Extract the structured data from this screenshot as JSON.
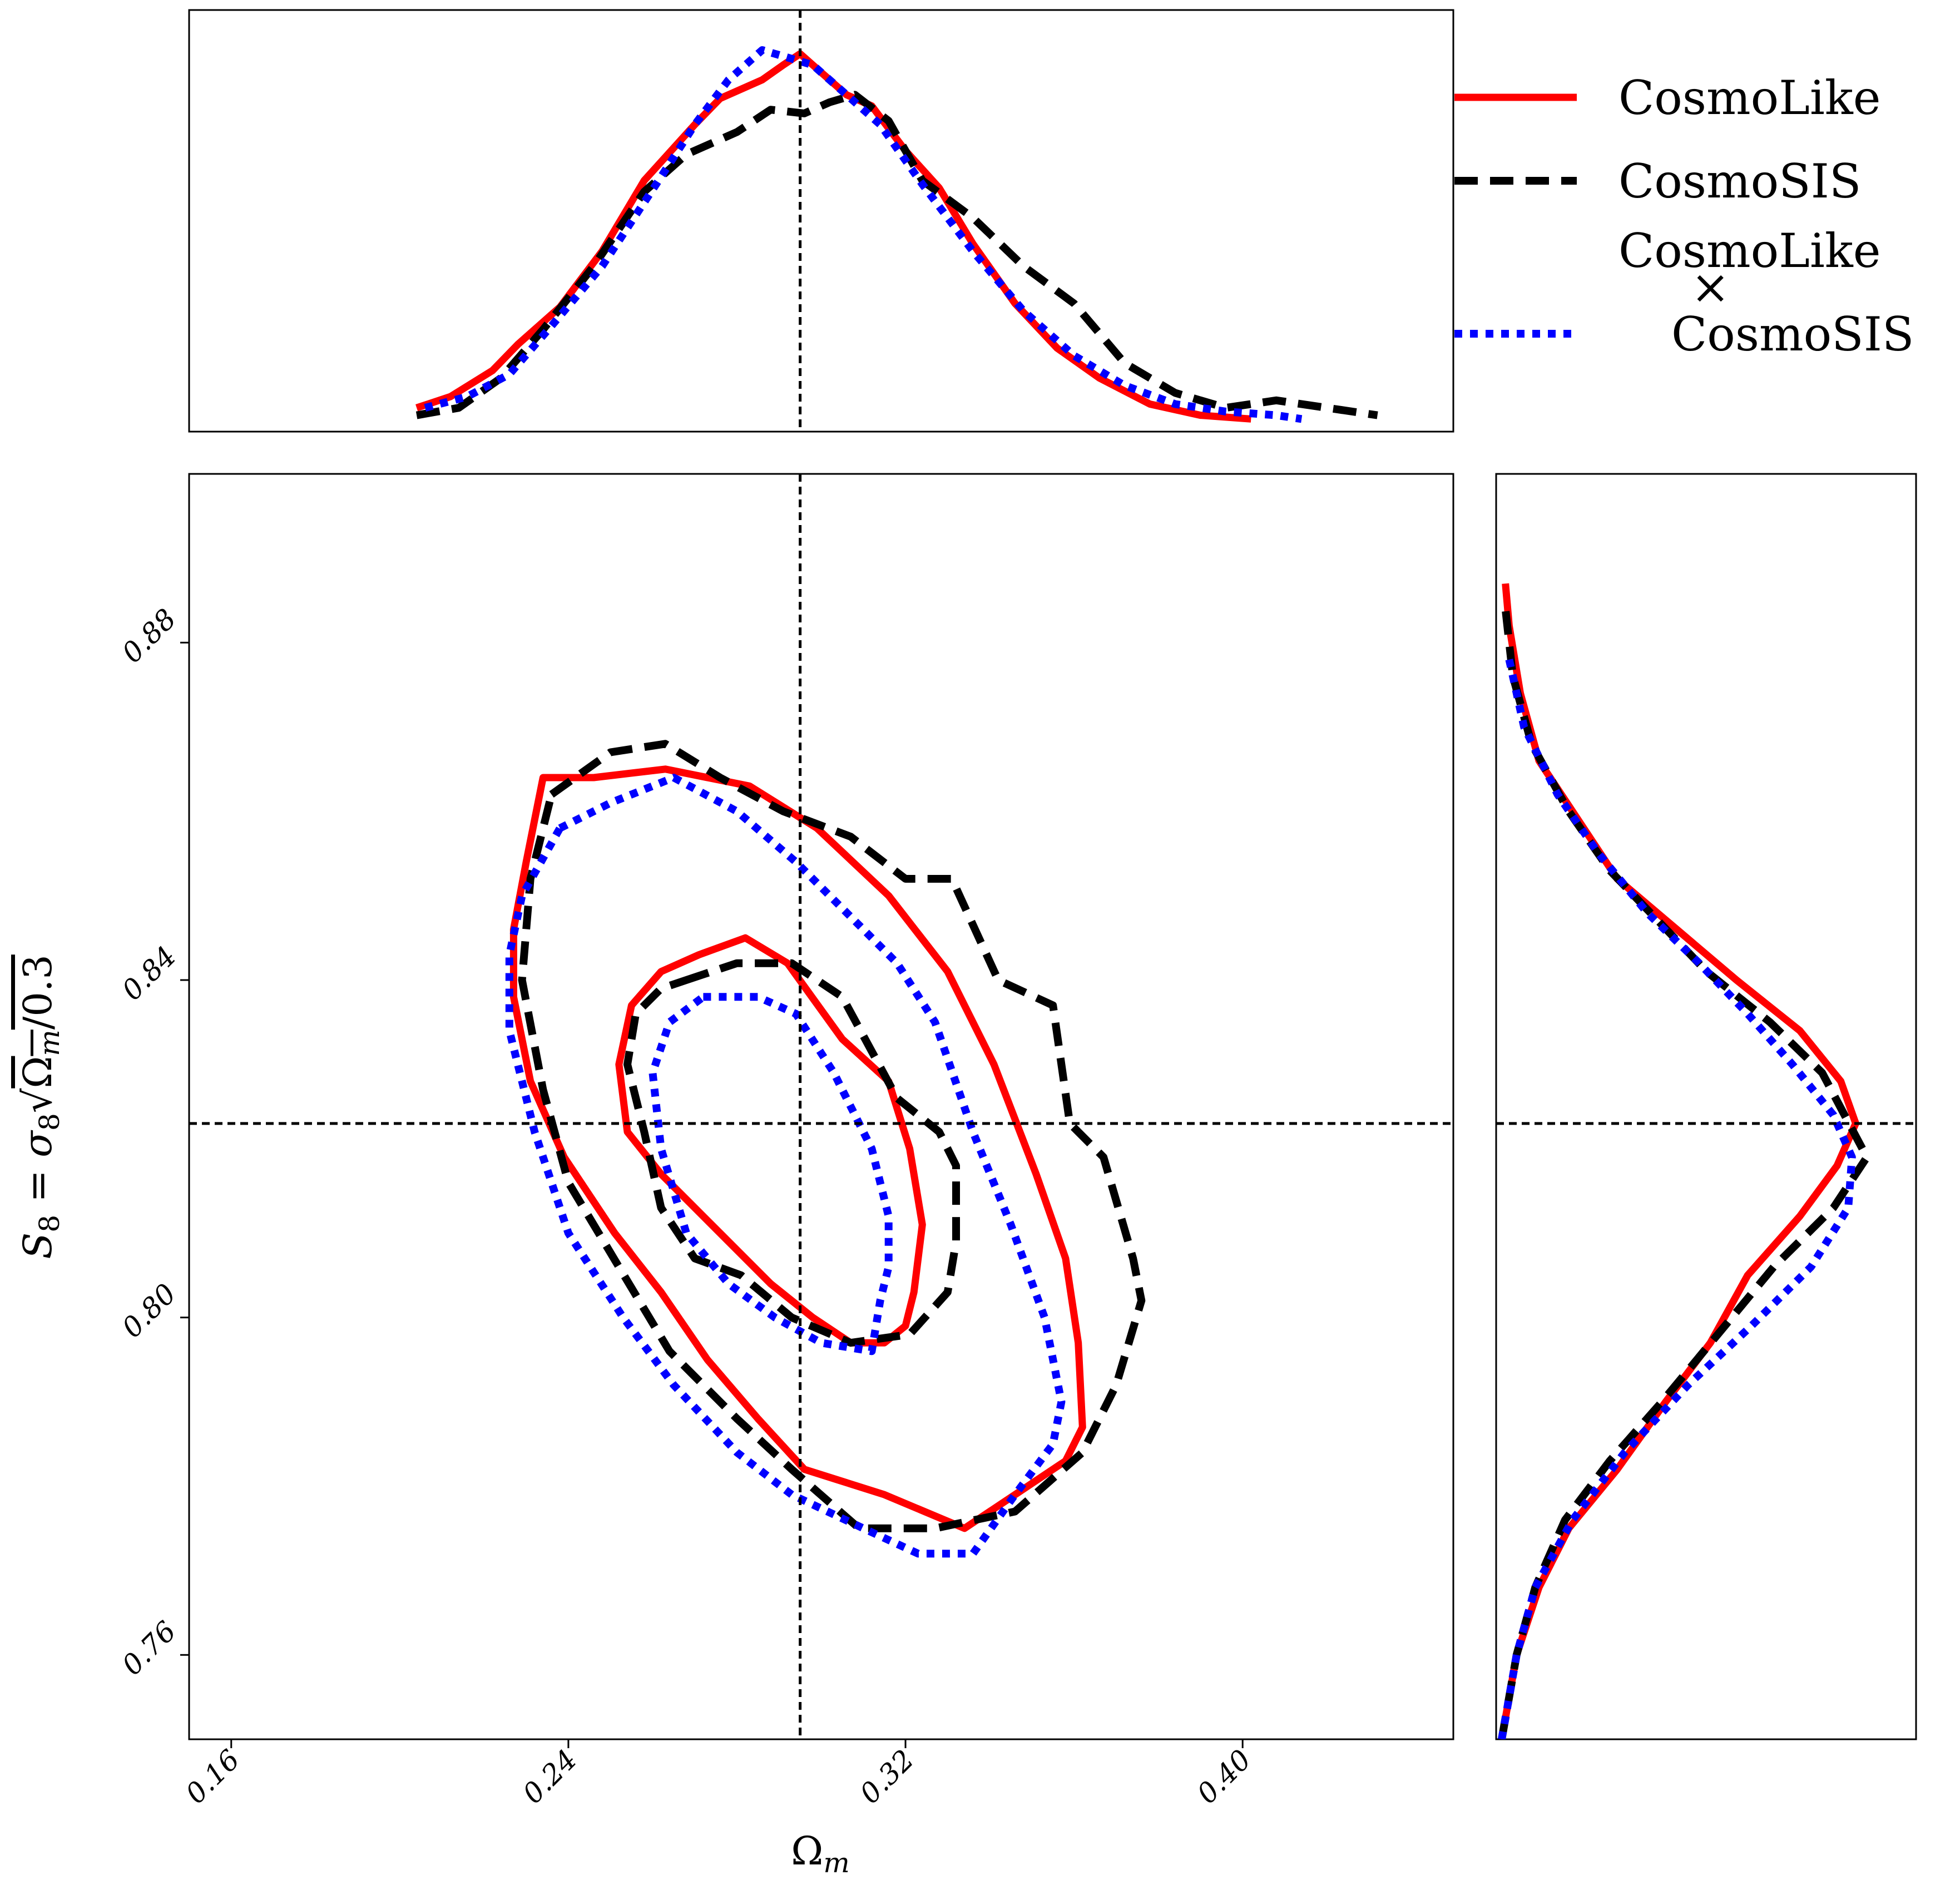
{
  "chart_data": {
    "type": "line",
    "xlabel": "Ω_m",
    "ylabel": "S_8 = σ_8 √(Ω_m/0.3)",
    "xlim": [
      0.15,
      0.45
    ],
    "ylim": [
      0.75,
      0.9
    ],
    "xticks": [
      "0.16",
      "0.24",
      "0.32",
      "0.40"
    ],
    "yticks": [
      "0.76",
      "0.80",
      "0.84",
      "0.88"
    ],
    "reference": {
      "omega_m": 0.295,
      "s8": 0.823
    },
    "legend": {
      "placement": "top-right",
      "entries": [
        {
          "label_lines": [
            "CosmoLike"
          ],
          "color": "#ff0000",
          "style": "solid"
        },
        {
          "label_lines": [
            "CosmoSIS"
          ],
          "color": "#000000",
          "style": "dashed"
        },
        {
          "label_lines": [
            "CosmoLike",
            "×",
            "CosmoSIS"
          ],
          "color": "#0000ff",
          "style": "dotted"
        }
      ]
    },
    "series": [
      {
        "name": "CosmoLike",
        "color": "#ff0000",
        "style": "solid",
        "marginal_omega_m": {
          "x": [
            0.204,
            0.212,
            0.222,
            0.228,
            0.238,
            0.248,
            0.258,
            0.27,
            0.276,
            0.286,
            0.291,
            0.295,
            0.3,
            0.306,
            0.312,
            0.32,
            0.328,
            0.336,
            0.346,
            0.356,
            0.366,
            0.378,
            0.39,
            0.402
          ],
          "y": [
            0.04,
            0.07,
            0.14,
            0.21,
            0.31,
            0.46,
            0.65,
            0.8,
            0.87,
            0.92,
            0.96,
            0.99,
            0.94,
            0.88,
            0.85,
            0.73,
            0.63,
            0.48,
            0.32,
            0.2,
            0.12,
            0.05,
            0.02,
            0.01
          ]
        },
        "marginal_s8": {
          "s8": [
            0.75,
            0.76,
            0.768,
            0.775,
            0.782,
            0.79,
            0.797,
            0.805,
            0.812,
            0.818,
            0.823,
            0.828,
            0.834,
            0.84,
            0.846,
            0.852,
            0.858,
            0.866,
            0.874,
            0.882,
            0.887
          ],
          "density": [
            0.0,
            0.04,
            0.1,
            0.18,
            0.31,
            0.44,
            0.56,
            0.66,
            0.8,
            0.9,
            0.95,
            0.91,
            0.8,
            0.63,
            0.47,
            0.31,
            0.22,
            0.1,
            0.05,
            0.02,
            0.01
          ]
        },
        "contour_68": {
          "x": [
            0.271,
            0.282,
            0.292,
            0.305,
            0.316,
            0.321,
            0.324,
            0.322,
            0.32,
            0.315,
            0.307,
            0.298,
            0.288,
            0.276,
            0.262,
            0.254,
            0.252,
            0.255,
            0.262,
            0.271
          ],
          "y": [
            0.843,
            0.845,
            0.842,
            0.833,
            0.828,
            0.82,
            0.811,
            0.803,
            0.799,
            0.797,
            0.797,
            0.8,
            0.804,
            0.81,
            0.817,
            0.822,
            0.83,
            0.837,
            0.841,
            0.843
          ]
        },
        "contour_95": {
          "x": [
            0.234,
            0.246,
            0.263,
            0.283,
            0.299,
            0.316,
            0.33,
            0.341,
            0.351,
            0.358,
            0.361,
            0.362,
            0.358,
            0.346,
            0.334,
            0.315,
            0.296,
            0.285,
            0.273,
            0.262,
            0.251,
            0.239,
            0.231,
            0.227,
            0.227,
            0.23,
            0.234
          ],
          "y": [
            0.864,
            0.864,
            0.865,
            0.863,
            0.858,
            0.85,
            0.841,
            0.83,
            0.817,
            0.807,
            0.797,
            0.787,
            0.783,
            0.779,
            0.775,
            0.779,
            0.782,
            0.788,
            0.795,
            0.803,
            0.81,
            0.819,
            0.828,
            0.838,
            0.846,
            0.854,
            0.864
          ]
        }
      },
      {
        "name": "CosmoSIS",
        "color": "#000000",
        "style": "dashed",
        "marginal_omega_m": {
          "x": [
            0.204,
            0.214,
            0.224,
            0.234,
            0.246,
            0.258,
            0.268,
            0.28,
            0.288,
            0.296,
            0.302,
            0.308,
            0.316,
            0.324,
            0.336,
            0.348,
            0.36,
            0.372,
            0.384,
            0.396,
            0.408,
            0.42,
            0.432
          ],
          "y": [
            0.02,
            0.04,
            0.12,
            0.25,
            0.42,
            0.62,
            0.72,
            0.78,
            0.84,
            0.83,
            0.86,
            0.88,
            0.81,
            0.65,
            0.55,
            0.42,
            0.32,
            0.16,
            0.08,
            0.04,
            0.06,
            0.04,
            0.02
          ]
        },
        "marginal_s8": {
          "s8": [
            0.75,
            0.76,
            0.768,
            0.776,
            0.783,
            0.79,
            0.798,
            0.806,
            0.813,
            0.819,
            0.824,
            0.829,
            0.835,
            0.841,
            0.847,
            0.853,
            0.86,
            0.868,
            0.876,
            0.884
          ],
          "density": [
            0.0,
            0.04,
            0.09,
            0.17,
            0.29,
            0.43,
            0.58,
            0.73,
            0.89,
            0.98,
            0.92,
            0.86,
            0.72,
            0.55,
            0.42,
            0.29,
            0.18,
            0.08,
            0.03,
            0.01
          ]
        },
        "contour_68": {
          "x": [
            0.268,
            0.28,
            0.293,
            0.305,
            0.318,
            0.328,
            0.332,
            0.332,
            0.33,
            0.321,
            0.307,
            0.293,
            0.281,
            0.27,
            0.262,
            0.258,
            0.254,
            0.256,
            0.262,
            0.268
          ],
          "y": [
            0.84,
            0.842,
            0.842,
            0.838,
            0.826,
            0.822,
            0.818,
            0.809,
            0.803,
            0.798,
            0.797,
            0.8,
            0.805,
            0.807,
            0.813,
            0.822,
            0.83,
            0.836,
            0.839,
            0.84
          ]
        },
        "contour_95": {
          "x": [
            0.236,
            0.25,
            0.263,
            0.276,
            0.291,
            0.307,
            0.32,
            0.331,
            0.342,
            0.355,
            0.359,
            0.367,
            0.374,
            0.376,
            0.37,
            0.362,
            0.346,
            0.327,
            0.309,
            0.293,
            0.28,
            0.264,
            0.252,
            0.24,
            0.234,
            0.229,
            0.231,
            0.236
          ],
          "y": [
            0.862,
            0.867,
            0.868,
            0.864,
            0.86,
            0.857,
            0.852,
            0.852,
            0.84,
            0.837,
            0.823,
            0.819,
            0.807,
            0.802,
            0.792,
            0.784,
            0.777,
            0.775,
            0.775,
            0.782,
            0.788,
            0.796,
            0.806,
            0.816,
            0.827,
            0.84,
            0.852,
            0.862
          ]
        }
      },
      {
        "name": "CosmoLike × CosmoSIS",
        "color": "#0000ff",
        "style": "dotted",
        "marginal_omega_m": {
          "x": [
            0.206,
            0.216,
            0.226,
            0.236,
            0.248,
            0.262,
            0.27,
            0.278,
            0.286,
            0.292,
            0.298,
            0.306,
            0.314,
            0.324,
            0.336,
            0.348,
            0.36,
            0.372,
            0.384,
            0.396,
            0.408,
            0.414
          ],
          "y": [
            0.04,
            0.07,
            0.13,
            0.26,
            0.42,
            0.66,
            0.8,
            0.92,
            1.0,
            0.98,
            0.96,
            0.88,
            0.8,
            0.64,
            0.46,
            0.3,
            0.18,
            0.1,
            0.05,
            0.03,
            0.02,
            0.01
          ]
        },
        "marginal_s8": {
          "s8": [
            0.75,
            0.76,
            0.768,
            0.776,
            0.784,
            0.792,
            0.799,
            0.806,
            0.813,
            0.819,
            0.824,
            0.83,
            0.836,
            0.842,
            0.848,
            0.855,
            0.862,
            0.87,
            0.878
          ],
          "density": [
            0.0,
            0.04,
            0.09,
            0.19,
            0.33,
            0.5,
            0.67,
            0.83,
            0.93,
            0.94,
            0.89,
            0.78,
            0.66,
            0.53,
            0.39,
            0.26,
            0.15,
            0.06,
            0.02
          ]
        },
        "contour_68": {
          "x": [
            0.272,
            0.285,
            0.294,
            0.303,
            0.312,
            0.316,
            0.316,
            0.314,
            0.312,
            0.3,
            0.289,
            0.278,
            0.268,
            0.262,
            0.26,
            0.264,
            0.272
          ],
          "y": [
            0.838,
            0.838,
            0.836,
            0.829,
            0.82,
            0.812,
            0.806,
            0.802,
            0.796,
            0.797,
            0.8,
            0.804,
            0.81,
            0.82,
            0.829,
            0.835,
            0.838
          ]
        },
        "contour_95": {
          "x": [
            0.238,
            0.25,
            0.265,
            0.28,
            0.294,
            0.308,
            0.318,
            0.327,
            0.336,
            0.345,
            0.353,
            0.357,
            0.355,
            0.346,
            0.336,
            0.323,
            0.31,
            0.293,
            0.28,
            0.265,
            0.253,
            0.24,
            0.232,
            0.226,
            0.226,
            0.229,
            0.238
          ],
          "y": [
            0.858,
            0.861,
            0.864,
            0.86,
            0.854,
            0.847,
            0.842,
            0.835,
            0.822,
            0.811,
            0.8,
            0.79,
            0.785,
            0.779,
            0.772,
            0.772,
            0.775,
            0.779,
            0.784,
            0.792,
            0.8,
            0.81,
            0.822,
            0.834,
            0.843,
            0.85,
            0.858
          ]
        }
      }
    ]
  }
}
